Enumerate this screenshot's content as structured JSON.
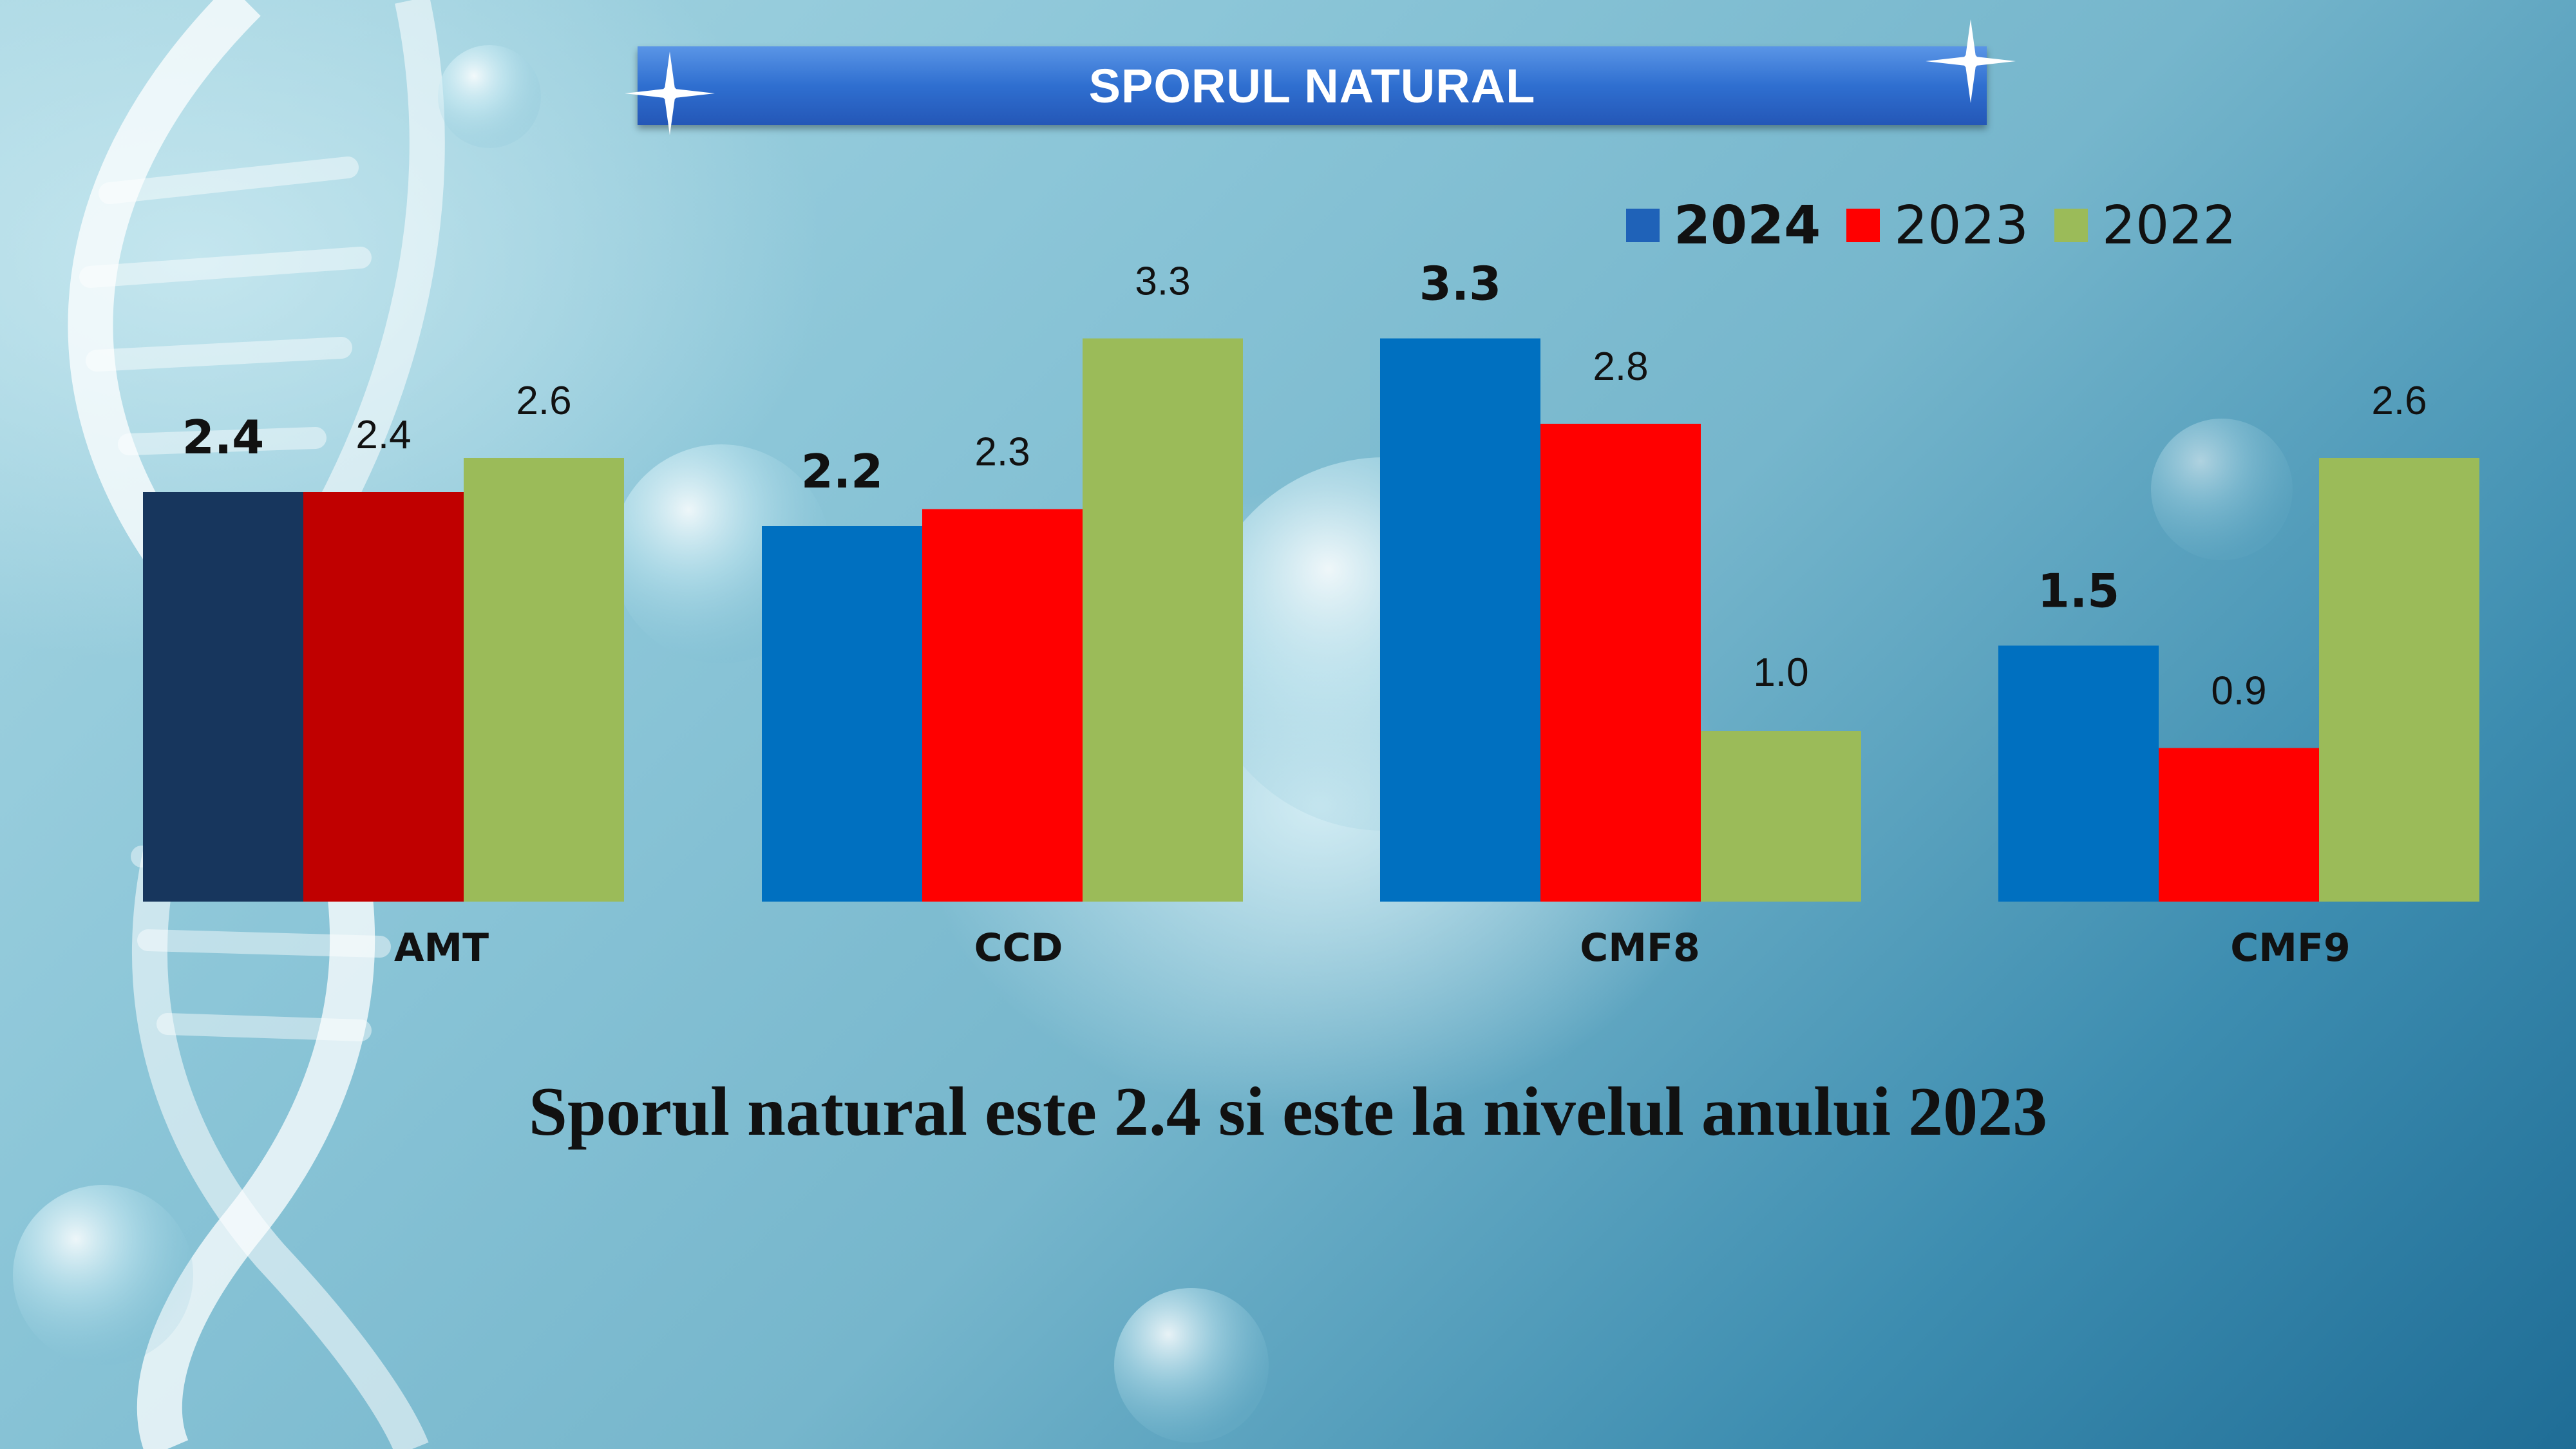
{
  "title": "SPORUL NATURAL",
  "legend": [
    {
      "label": "2024",
      "color": "#1f62b8",
      "bold": true
    },
    {
      "label": "2023",
      "color": "#ff0000",
      "bold": false
    },
    {
      "label": "2022",
      "color": "#9bbb59",
      "bold": false
    }
  ],
  "chart_data": {
    "type": "bar",
    "title": "SPORUL NATURAL",
    "categories": [
      "AMT",
      "CCD",
      "CMF8",
      "CMF9"
    ],
    "series": [
      {
        "name": "2024",
        "values": [
          2.4,
          2.2,
          3.3,
          1.5
        ],
        "labels": [
          "2.4",
          "2.2",
          "3.3",
          "1.5"
        ]
      },
      {
        "name": "2023",
        "values": [
          2.4,
          2.3,
          2.8,
          0.9
        ],
        "labels": [
          "2.4",
          "2.3",
          "2.8",
          "0.9"
        ]
      },
      {
        "name": "2022",
        "values": [
          2.6,
          3.3,
          1.0,
          2.6
        ],
        "labels": [
          "2.6",
          "3.3",
          "1.0",
          "2.6"
        ]
      }
    ],
    "bar_colors": {
      "2024": [
        "#17365d",
        "#0070c0",
        "#0070c0",
        "#0070c0"
      ],
      "2023": [
        "#c00000",
        "#ff0000",
        "#ff0000",
        "#ff0000"
      ],
      "2022": [
        "#9bbb59",
        "#9bbb59",
        "#9bbb59",
        "#9bbb59"
      ]
    },
    "xlabel": "",
    "ylabel": "",
    "ylim": [
      0,
      3.3
    ],
    "grid": false,
    "legend_position": "top-right"
  },
  "conclusion": "Sporul natural este 2.4 si este la nivelul anului 2023"
}
